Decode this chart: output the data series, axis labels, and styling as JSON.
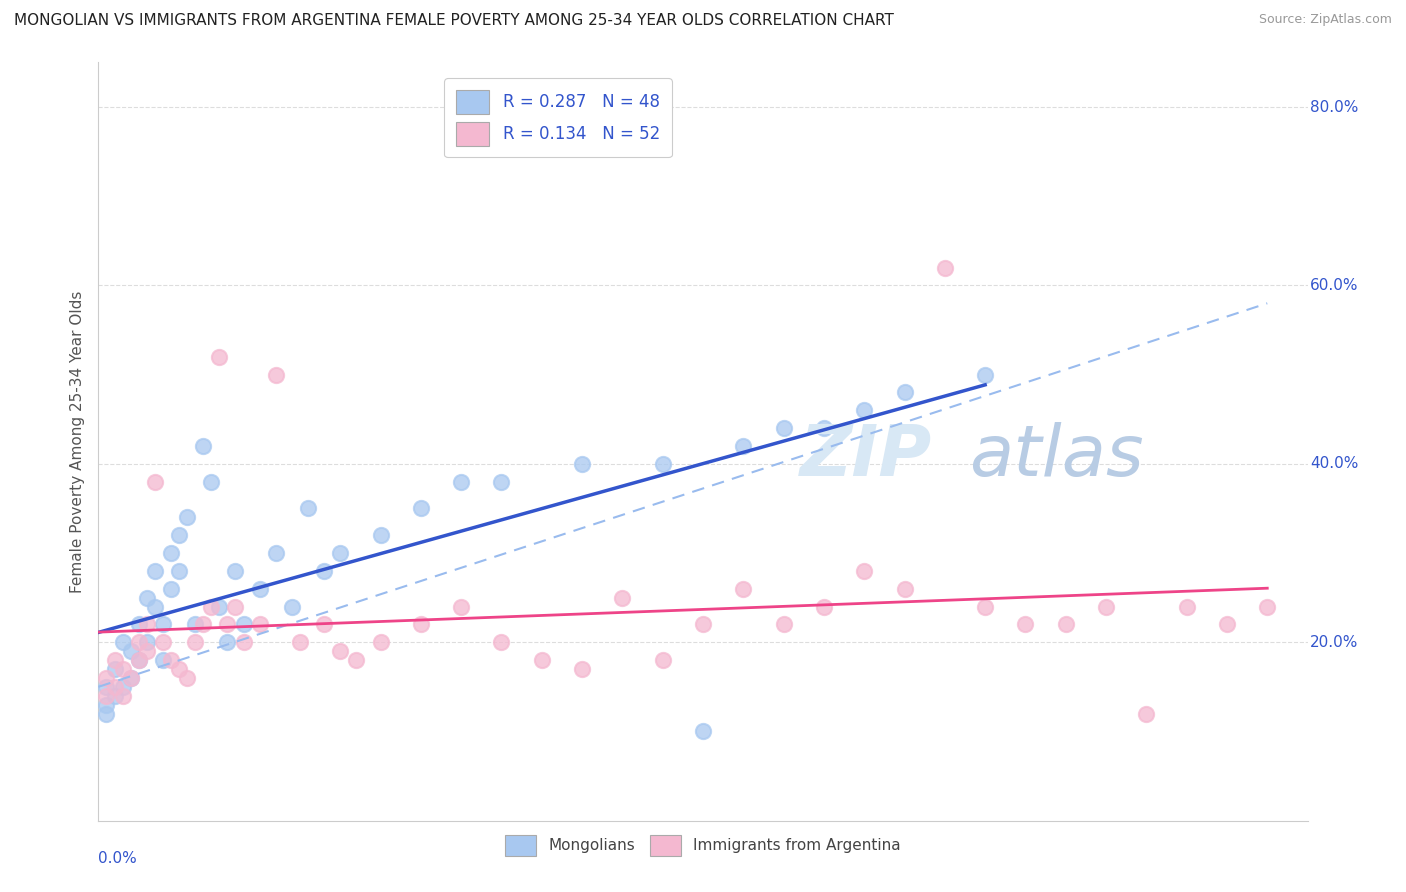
{
  "title": "MONGOLIAN VS IMMIGRANTS FROM ARGENTINA FEMALE POVERTY AMONG 25-34 YEAR OLDS CORRELATION CHART",
  "source": "Source: ZipAtlas.com",
  "ylabel": "Female Poverty Among 25-34 Year Olds",
  "legend_r1": "R = 0.287",
  "legend_n1": "N = 48",
  "legend_r2": "R = 0.134",
  "legend_n2": "N = 52",
  "mongolian_color": "#a8c8f0",
  "argentina_color": "#f4b8d0",
  "trendline_mongolian_color": "#3355cc",
  "trendline_argentina_color": "#ee4488",
  "trendline_dashed_color": "#99bbee",
  "background_color": "#ffffff",
  "grid_color": "#dddddd",
  "title_color": "#222222",
  "axis_label_color": "#3355cc",
  "xmin": 0.0,
  "xmax": 0.15,
  "ymin": 0.0,
  "ymax": 0.85,
  "mongolians_x": [
    0.001,
    0.001,
    0.001,
    0.002,
    0.002,
    0.003,
    0.003,
    0.004,
    0.004,
    0.005,
    0.005,
    0.006,
    0.006,
    0.007,
    0.007,
    0.008,
    0.008,
    0.009,
    0.009,
    0.01,
    0.01,
    0.011,
    0.012,
    0.013,
    0.014,
    0.015,
    0.016,
    0.017,
    0.018,
    0.02,
    0.022,
    0.024,
    0.026,
    0.028,
    0.03,
    0.035,
    0.04,
    0.045,
    0.05,
    0.06,
    0.07,
    0.075,
    0.08,
    0.085,
    0.09,
    0.095,
    0.1,
    0.11
  ],
  "mongolians_y": [
    0.15,
    0.13,
    0.12,
    0.17,
    0.14,
    0.2,
    0.15,
    0.19,
    0.16,
    0.22,
    0.18,
    0.25,
    0.2,
    0.28,
    0.24,
    0.22,
    0.18,
    0.3,
    0.26,
    0.32,
    0.28,
    0.34,
    0.22,
    0.42,
    0.38,
    0.24,
    0.2,
    0.28,
    0.22,
    0.26,
    0.3,
    0.24,
    0.35,
    0.28,
    0.3,
    0.32,
    0.35,
    0.38,
    0.38,
    0.4,
    0.4,
    0.1,
    0.42,
    0.44,
    0.44,
    0.46,
    0.48,
    0.5
  ],
  "argentina_x": [
    0.001,
    0.001,
    0.002,
    0.002,
    0.003,
    0.003,
    0.004,
    0.005,
    0.005,
    0.006,
    0.006,
    0.007,
    0.008,
    0.009,
    0.01,
    0.011,
    0.012,
    0.013,
    0.014,
    0.015,
    0.016,
    0.017,
    0.018,
    0.02,
    0.022,
    0.025,
    0.028,
    0.03,
    0.032,
    0.035,
    0.04,
    0.045,
    0.05,
    0.055,
    0.06,
    0.065,
    0.07,
    0.075,
    0.08,
    0.085,
    0.09,
    0.095,
    0.1,
    0.105,
    0.11,
    0.115,
    0.12,
    0.125,
    0.13,
    0.135,
    0.14,
    0.145
  ],
  "argentina_y": [
    0.16,
    0.14,
    0.18,
    0.15,
    0.17,
    0.14,
    0.16,
    0.2,
    0.18,
    0.22,
    0.19,
    0.38,
    0.2,
    0.18,
    0.17,
    0.16,
    0.2,
    0.22,
    0.24,
    0.52,
    0.22,
    0.24,
    0.2,
    0.22,
    0.5,
    0.2,
    0.22,
    0.19,
    0.18,
    0.2,
    0.22,
    0.24,
    0.2,
    0.18,
    0.17,
    0.25,
    0.18,
    0.22,
    0.26,
    0.22,
    0.24,
    0.28,
    0.26,
    0.62,
    0.24,
    0.22,
    0.22,
    0.24,
    0.12,
    0.24,
    0.22,
    0.24
  ]
}
